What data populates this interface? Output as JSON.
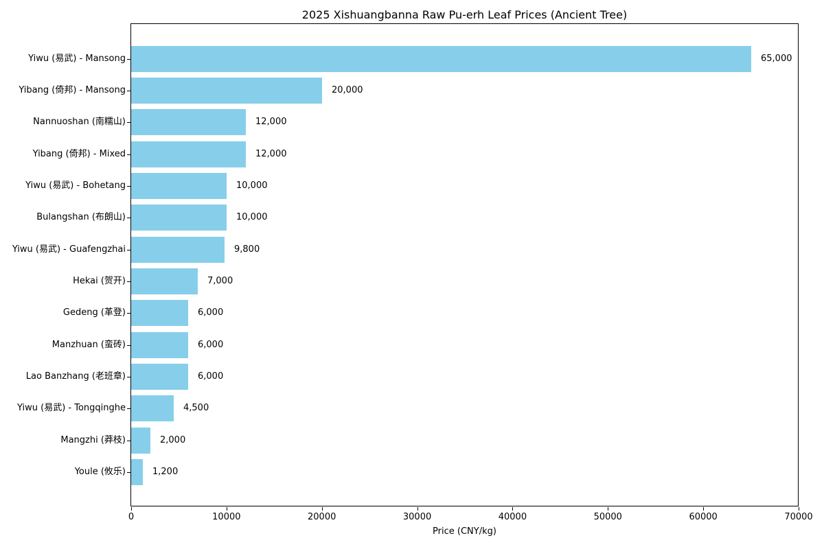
{
  "chart_data": {
    "type": "bar",
    "orientation": "horizontal",
    "title": "2025 Xishuangbanna Raw Pu-erh Leaf Prices (Ancient Tree)",
    "xlabel": "Price (CNY/kg)",
    "ylabel": "",
    "xlim": [
      0,
      70000
    ],
    "xticks": [
      0,
      10000,
      20000,
      30000,
      40000,
      50000,
      60000,
      70000
    ],
    "grid": false,
    "legend": null,
    "bar_color": "#87CEEB",
    "text_color": "#000000",
    "categories": [
      "Yiwu (易武) - Mansong",
      "Yibang (倚邦) - Mansong",
      "Nannuoshan (南糯山)",
      "Yibang (倚邦) - Mixed",
      "Yiwu (易武) - Bohetang",
      "Bulangshan (布朗山)",
      "Yiwu (易武) - Guafengzhai",
      "Hekai (贺开)",
      "Gedeng (革登)",
      "Manzhuan (蛮砖)",
      "Lao Banzhang (老班章)",
      "Yiwu (易武) - Tongqinghe",
      "Mangzhi (莽枝)",
      "Youle (攸乐)"
    ],
    "values": [
      65000,
      20000,
      12000,
      12000,
      10000,
      10000,
      9800,
      7000,
      6000,
      6000,
      6000,
      4500,
      2000,
      1200
    ],
    "value_labels": [
      "65,000",
      "20,000",
      "12,000",
      "12,000",
      "10,000",
      "10,000",
      "9,800",
      "7,000",
      "6,000",
      "6,000",
      "6,000",
      "4,500",
      "2,000",
      "1,200"
    ]
  }
}
